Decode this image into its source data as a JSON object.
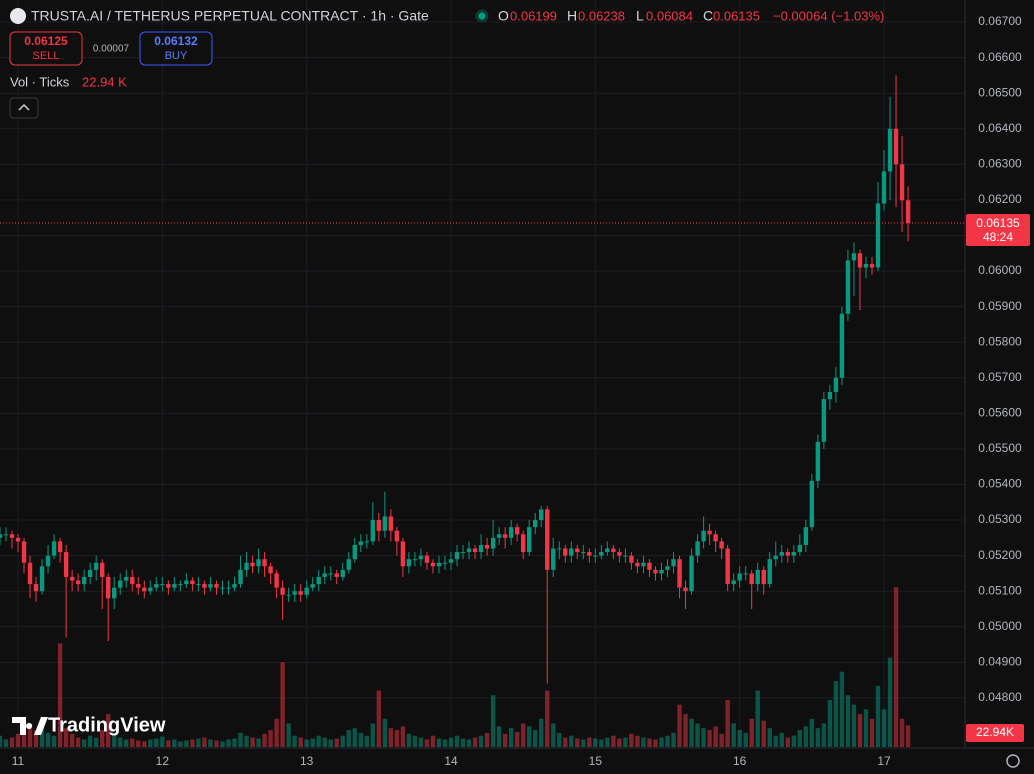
{
  "header": {
    "title": "TRUSTA.AI / TETHERUS PERPETUAL CONTRACT · 1h · Gate",
    "o_label": "O",
    "o_value": "0.06199",
    "h_label": "H",
    "h_value": "0.06238",
    "l_label": "L",
    "l_value": "0.06084",
    "c_label": "C",
    "c_value": "0.06135",
    "change": "−0.00064 (−1.03%)",
    "sell_price": "0.06125",
    "sell_label": "SELL",
    "spread": "0.00007",
    "buy_price": "0.06132",
    "buy_label": "BUY",
    "volume_indicator": "Vol · Ticks",
    "volume_indicator_value": "22.94 K",
    "logo": "TradingView"
  },
  "chart_data": {
    "type": "candlestick",
    "open": [
      0.0525,
      0.0526,
      0.0526,
      0.0525,
      0.0524,
      0.0518,
      0.0512,
      0.051,
      0.0517,
      0.052,
      0.0524,
      0.0521,
      0.0514,
      0.0513,
      0.0512,
      0.0514,
      0.0516,
      0.0518,
      0.0514,
      0.0508,
      0.0511,
      0.0513,
      0.0514,
      0.0512,
      0.0511,
      0.051,
      0.0511,
      0.0512,
      0.0512,
      0.0511,
      0.0512,
      0.0512,
      0.0513,
      0.0512,
      0.0512,
      0.0511,
      0.0512,
      0.0511,
      0.0511,
      0.0511,
      0.0512,
      0.0516,
      0.0518,
      0.0517,
      0.0519,
      0.0517,
      0.0515,
      0.0511,
      0.0509,
      0.0509,
      0.051,
      0.0509,
      0.0511,
      0.0512,
      0.0514,
      0.0515,
      0.0515,
      0.0514,
      0.0516,
      0.0519,
      0.0523,
      0.0524,
      0.0524,
      0.053,
      0.0527,
      0.0531,
      0.0527,
      0.0524,
      0.0517,
      0.0519,
      0.0519,
      0.052,
      0.0518,
      0.0517,
      0.0518,
      0.0518,
      0.0519,
      0.0521,
      0.0521,
      0.0522,
      0.0521,
      0.0523,
      0.0522,
      0.0525,
      0.0526,
      0.0525,
      0.0528,
      0.0526,
      0.0521,
      0.0528,
      0.053,
      0.0533,
      0.0516,
      0.0522,
      0.0522,
      0.052,
      0.0522,
      0.0521,
      0.0521,
      0.052,
      0.052,
      0.0521,
      0.0522,
      0.0521,
      0.052,
      0.052,
      0.0518,
      0.0517,
      0.0518,
      0.0516,
      0.0515,
      0.0516,
      0.0517,
      0.0519,
      0.0511,
      0.051,
      0.052,
      0.0524,
      0.0527,
      0.0526,
      0.0524,
      0.0522,
      0.0512,
      0.0513,
      0.0515,
      0.0515,
      0.0512,
      0.0516,
      0.0512,
      0.0519,
      0.052,
      0.0521,
      0.052,
      0.0521,
      0.0523,
      0.0528,
      0.0541,
      0.0552,
      0.0564,
      0.0566,
      0.057,
      0.0588,
      0.0603,
      0.0605,
      0.0601,
      0.0602,
      0.0601,
      0.0619,
      0.0628,
      0.064,
      0.063,
      0.06199
    ],
    "high": [
      0.0528,
      0.0528,
      0.0527,
      0.0526,
      0.0525,
      0.052,
      0.0514,
      0.0519,
      0.0523,
      0.0526,
      0.0525,
      0.0523,
      0.0516,
      0.0515,
      0.0516,
      0.0518,
      0.052,
      0.0519,
      0.0515,
      0.0514,
      0.0515,
      0.0516,
      0.0516,
      0.0514,
      0.0513,
      0.0513,
      0.0514,
      0.0514,
      0.0513,
      0.0514,
      0.0513,
      0.0515,
      0.0514,
      0.0514,
      0.0513,
      0.0514,
      0.0513,
      0.0513,
      0.0513,
      0.0514,
      0.052,
      0.0521,
      0.052,
      0.0522,
      0.0521,
      0.0518,
      0.0516,
      0.0513,
      0.0511,
      0.0512,
      0.0512,
      0.0513,
      0.0514,
      0.0516,
      0.0517,
      0.0517,
      0.0516,
      0.0518,
      0.0521,
      0.0525,
      0.0526,
      0.0526,
      0.0535,
      0.0532,
      0.0538,
      0.0533,
      0.0528,
      0.0525,
      0.0521,
      0.0521,
      0.0522,
      0.0521,
      0.0519,
      0.052,
      0.052,
      0.0521,
      0.0523,
      0.0523,
      0.0524,
      0.0523,
      0.0526,
      0.0525,
      0.053,
      0.0528,
      0.0528,
      0.053,
      0.0529,
      0.0527,
      0.053,
      0.0532,
      0.0534,
      0.0534,
      0.0525,
      0.0524,
      0.0523,
      0.0524,
      0.0523,
      0.0523,
      0.0522,
      0.0522,
      0.0523,
      0.0524,
      0.0523,
      0.0522,
      0.0522,
      0.0521,
      0.0519,
      0.052,
      0.0519,
      0.0517,
      0.0518,
      0.0519,
      0.0521,
      0.052,
      0.0513,
      0.0522,
      0.0526,
      0.0531,
      0.0529,
      0.0527,
      0.0525,
      0.0523,
      0.0515,
      0.0517,
      0.0517,
      0.0516,
      0.0518,
      0.0517,
      0.0521,
      0.0524,
      0.0523,
      0.0522,
      0.0523,
      0.0526,
      0.053,
      0.0543,
      0.0554,
      0.0566,
      0.0568,
      0.0573,
      0.059,
      0.0606,
      0.0608,
      0.0606,
      0.0604,
      0.0604,
      0.0625,
      0.0634,
      0.0649,
      0.0655,
      0.0638,
      0.06238
    ],
    "low": [
      0.0523,
      0.0524,
      0.0522,
      0.0521,
      0.0515,
      0.0508,
      0.0507,
      0.0509,
      0.0515,
      0.0519,
      0.0518,
      0.0497,
      0.051,
      0.051,
      0.051,
      0.0512,
      0.0513,
      0.0505,
      0.0496,
      0.0505,
      0.0509,
      0.0511,
      0.051,
      0.0509,
      0.0508,
      0.0509,
      0.051,
      0.051,
      0.0509,
      0.051,
      0.051,
      0.0511,
      0.051,
      0.051,
      0.0509,
      0.051,
      0.0509,
      0.0509,
      0.0509,
      0.051,
      0.0511,
      0.0514,
      0.0515,
      0.0515,
      0.0514,
      0.0512,
      0.0508,
      0.0502,
      0.0507,
      0.0507,
      0.0507,
      0.0508,
      0.051,
      0.051,
      0.0512,
      0.0513,
      0.0512,
      0.0513,
      0.0515,
      0.0518,
      0.0521,
      0.0522,
      0.0523,
      0.0524,
      0.0525,
      0.0524,
      0.052,
      0.0514,
      0.0515,
      0.0517,
      0.0517,
      0.0516,
      0.0515,
      0.0515,
      0.0516,
      0.0516,
      0.0517,
      0.0519,
      0.0519,
      0.0519,
      0.0519,
      0.052,
      0.052,
      0.0523,
      0.0522,
      0.0523,
      0.0524,
      0.0519,
      0.052,
      0.0526,
      0.0528,
      0.0484,
      0.0514,
      0.0519,
      0.0518,
      0.0518,
      0.0519,
      0.0519,
      0.0518,
      0.0518,
      0.0519,
      0.052,
      0.0519,
      0.0518,
      0.0518,
      0.0516,
      0.0515,
      0.0515,
      0.0514,
      0.0513,
      0.0513,
      0.0514,
      0.0515,
      0.0508,
      0.0505,
      0.0509,
      0.0518,
      0.0522,
      0.0523,
      0.0521,
      0.0519,
      0.051,
      0.051,
      0.0511,
      0.0513,
      0.0505,
      0.051,
      0.0509,
      0.0511,
      0.0517,
      0.0518,
      0.0518,
      0.0518,
      0.052,
      0.0521,
      0.0527,
      0.0539,
      0.055,
      0.0561,
      0.0563,
      0.0568,
      0.0586,
      0.0593,
      0.0589,
      0.0598,
      0.0599,
      0.06,
      0.0617,
      0.062,
      0.0618,
      0.0611,
      0.06084
    ],
    "close": [
      0.0526,
      0.0526,
      0.0525,
      0.0524,
      0.0518,
      0.0512,
      0.051,
      0.0517,
      0.052,
      0.0524,
      0.0521,
      0.0514,
      0.0513,
      0.0512,
      0.0514,
      0.0516,
      0.0518,
      0.0514,
      0.0508,
      0.0511,
      0.0513,
      0.0514,
      0.0512,
      0.0511,
      0.051,
      0.0511,
      0.0512,
      0.0512,
      0.0511,
      0.0512,
      0.0512,
      0.0513,
      0.0512,
      0.0512,
      0.0511,
      0.0512,
      0.0511,
      0.0511,
      0.0511,
      0.0512,
      0.0516,
      0.0518,
      0.0517,
      0.0519,
      0.0517,
      0.0515,
      0.0511,
      0.0509,
      0.0509,
      0.051,
      0.0509,
      0.0511,
      0.0512,
      0.0514,
      0.0515,
      0.0515,
      0.0514,
      0.0516,
      0.0519,
      0.0523,
      0.0524,
      0.0524,
      0.053,
      0.0527,
      0.0531,
      0.0527,
      0.0524,
      0.0517,
      0.0519,
      0.0519,
      0.052,
      0.0518,
      0.0517,
      0.0518,
      0.0518,
      0.0519,
      0.0521,
      0.0521,
      0.0522,
      0.0521,
      0.0523,
      0.0522,
      0.0525,
      0.0526,
      0.0525,
      0.0528,
      0.0526,
      0.0521,
      0.0528,
      0.053,
      0.0533,
      0.0516,
      0.0522,
      0.0522,
      0.052,
      0.0522,
      0.0521,
      0.0521,
      0.052,
      0.052,
      0.0521,
      0.0522,
      0.0521,
      0.052,
      0.052,
      0.0518,
      0.0517,
      0.0518,
      0.0516,
      0.0515,
      0.0516,
      0.0517,
      0.0519,
      0.0511,
      0.051,
      0.052,
      0.0524,
      0.0527,
      0.0526,
      0.0524,
      0.0522,
      0.0512,
      0.0513,
      0.0515,
      0.0515,
      0.0512,
      0.0516,
      0.0512,
      0.0519,
      0.052,
      0.0521,
      0.052,
      0.0521,
      0.0523,
      0.0528,
      0.0541,
      0.0552,
      0.0564,
      0.0566,
      0.057,
      0.0588,
      0.0603,
      0.0605,
      0.0601,
      0.0602,
      0.0601,
      0.0619,
      0.0628,
      0.064,
      0.063,
      0.06199,
      0.06135
    ],
    "volume": [
      12,
      8,
      10,
      14,
      30,
      25,
      18,
      22,
      15,
      12,
      110,
      20,
      14,
      10,
      8,
      12,
      10,
      18,
      35,
      15,
      10,
      8,
      9,
      7,
      6,
      8,
      9,
      11,
      7,
      8,
      6,
      7,
      8,
      9,
      10,
      8,
      7,
      6,
      8,
      9,
      15,
      12,
      10,
      9,
      14,
      18,
      30,
      90,
      25,
      12,
      10,
      8,
      9,
      12,
      10,
      8,
      9,
      12,
      18,
      20,
      15,
      12,
      25,
      60,
      30,
      20,
      18,
      22,
      14,
      12,
      10,
      8,
      12,
      9,
      8,
      10,
      12,
      9,
      8,
      10,
      12,
      15,
      55,
      22,
      14,
      20,
      16,
      25,
      22,
      18,
      30,
      60,
      25,
      15,
      10,
      12,
      9,
      8,
      10,
      9,
      8,
      10,
      12,
      9,
      10,
      14,
      12,
      10,
      9,
      8,
      10,
      12,
      15,
      45,
      35,
      30,
      25,
      20,
      18,
      22,
      14,
      50,
      25,
      18,
      15,
      30,
      60,
      28,
      20,
      12,
      15,
      10,
      12,
      18,
      22,
      30,
      20,
      25,
      50,
      70,
      80,
      55,
      45,
      35,
      40,
      30,
      65,
      40,
      95,
      170,
      30,
      22.94
    ],
    "up_color": "#089981",
    "down_color": "#f23645",
    "ylim": [
      0.04662,
      0.06762
    ],
    "yticks": [
      {
        "value": 0.048,
        "label": "0.04800"
      },
      {
        "value": 0.049,
        "label": "0.04900"
      },
      {
        "value": 0.05,
        "label": "0.05000"
      },
      {
        "value": 0.051,
        "label": "0.05100"
      },
      {
        "value": 0.052,
        "label": "0.05200"
      },
      {
        "value": 0.053,
        "label": "0.05300"
      },
      {
        "value": 0.054,
        "label": "0.05400"
      },
      {
        "value": 0.055,
        "label": "0.05500"
      },
      {
        "value": 0.056,
        "label": "0.05600"
      },
      {
        "value": 0.057,
        "label": "0.05700"
      },
      {
        "value": 0.058,
        "label": "0.05800"
      },
      {
        "value": 0.059,
        "label": "0.05900"
      },
      {
        "value": 0.06,
        "label": "0.06000"
      },
      {
        "value": 0.061,
        "label": "0.06100"
      },
      {
        "value": 0.062,
        "label": "0.06200"
      },
      {
        "value": 0.063,
        "label": "0.06300"
      },
      {
        "value": 0.064,
        "label": "0.06400"
      },
      {
        "value": 0.065,
        "label": "0.06500"
      },
      {
        "value": 0.066,
        "label": "0.06600"
      },
      {
        "value": 0.067,
        "label": "0.06700"
      }
    ],
    "xticks": [
      {
        "value": 3,
        "label": "11"
      },
      {
        "value": 27,
        "label": "12"
      },
      {
        "value": 51,
        "label": "13"
      },
      {
        "value": 75,
        "label": "14"
      },
      {
        "value": 99,
        "label": "15"
      },
      {
        "value": 123,
        "label": "16"
      },
      {
        "value": 147,
        "label": "17"
      }
    ],
    "grid": true,
    "last_price": {
      "value": 0.06135,
      "label": "0.06135"
    },
    "countdown": "48:24",
    "last_volume_label": "22.94K"
  }
}
